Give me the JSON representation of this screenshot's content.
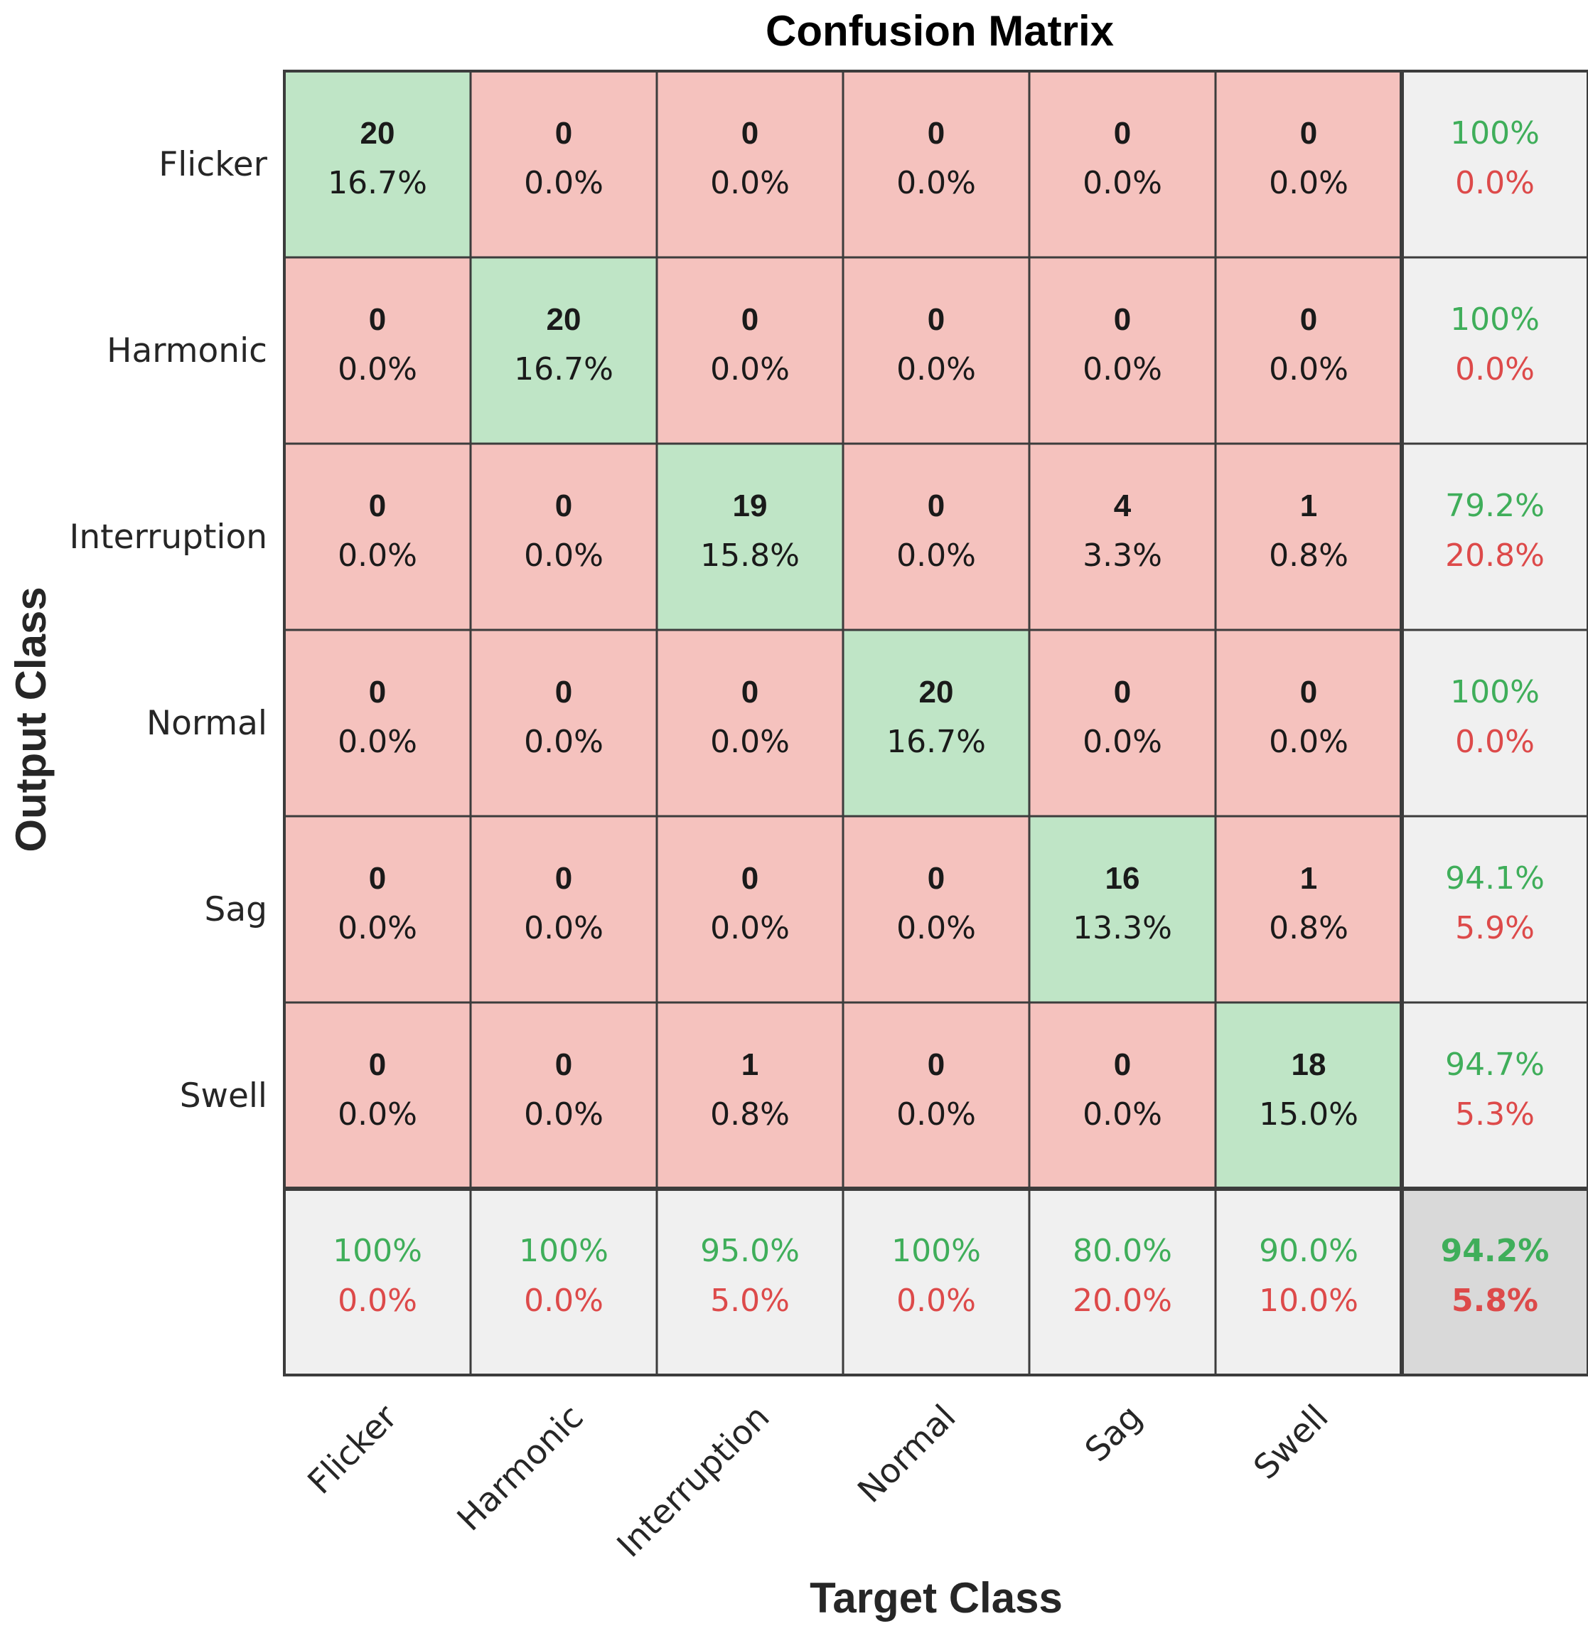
{
  "chart_data": {
    "type": "heatmap",
    "title": "Confusion Matrix",
    "xlabel": "Target Class",
    "ylabel": "Output Class",
    "classes": [
      "Flicker",
      "Harmonic",
      "Interruption",
      "Normal",
      "Sag",
      "Swell"
    ],
    "matrix": [
      [
        20,
        0,
        0,
        0,
        0,
        0
      ],
      [
        0,
        20,
        0,
        0,
        0,
        0
      ],
      [
        0,
        0,
        19,
        0,
        4,
        1
      ],
      [
        0,
        0,
        0,
        20,
        0,
        0
      ],
      [
        0,
        0,
        0,
        0,
        16,
        1
      ],
      [
        0,
        0,
        1,
        0,
        0,
        18
      ]
    ],
    "matrix_percent": [
      [
        "16.7%",
        "0.0%",
        "0.0%",
        "0.0%",
        "0.0%",
        "0.0%"
      ],
      [
        "0.0%",
        "16.7%",
        "0.0%",
        "0.0%",
        "0.0%",
        "0.0%"
      ],
      [
        "0.0%",
        "0.0%",
        "15.8%",
        "0.0%",
        "3.3%",
        "0.8%"
      ],
      [
        "0.0%",
        "0.0%",
        "0.0%",
        "16.7%",
        "0.0%",
        "0.0%"
      ],
      [
        "0.0%",
        "0.0%",
        "0.0%",
        "0.0%",
        "13.3%",
        "0.8%"
      ],
      [
        "0.0%",
        "0.0%",
        "0.8%",
        "0.0%",
        "0.0%",
        "15.0%"
      ]
    ],
    "row_summary": [
      {
        "correct": "100%",
        "error": "0.0%"
      },
      {
        "correct": "100%",
        "error": "0.0%"
      },
      {
        "correct": "79.2%",
        "error": "20.8%"
      },
      {
        "correct": "100%",
        "error": "0.0%"
      },
      {
        "correct": "94.1%",
        "error": "5.9%"
      },
      {
        "correct": "94.7%",
        "error": "5.3%"
      }
    ],
    "col_summary": [
      {
        "correct": "100%",
        "error": "0.0%"
      },
      {
        "correct": "100%",
        "error": "0.0%"
      },
      {
        "correct": "95.0%",
        "error": "5.0%"
      },
      {
        "correct": "100%",
        "error": "0.0%"
      },
      {
        "correct": "80.0%",
        "error": "20.0%"
      },
      {
        "correct": "90.0%",
        "error": "10.0%"
      }
    ],
    "overall": {
      "correct": "94.2%",
      "error": "5.8%"
    }
  },
  "colors": {
    "correct_cell": "#bfe5c6",
    "wrong_cell": "#f5c2be",
    "summary_cell": "#f0f0f0",
    "overall_cell": "#d9d9d9",
    "good_text": "#3fae5a",
    "bad_text": "#dd4a4a",
    "grid": "#3c3c3c"
  }
}
